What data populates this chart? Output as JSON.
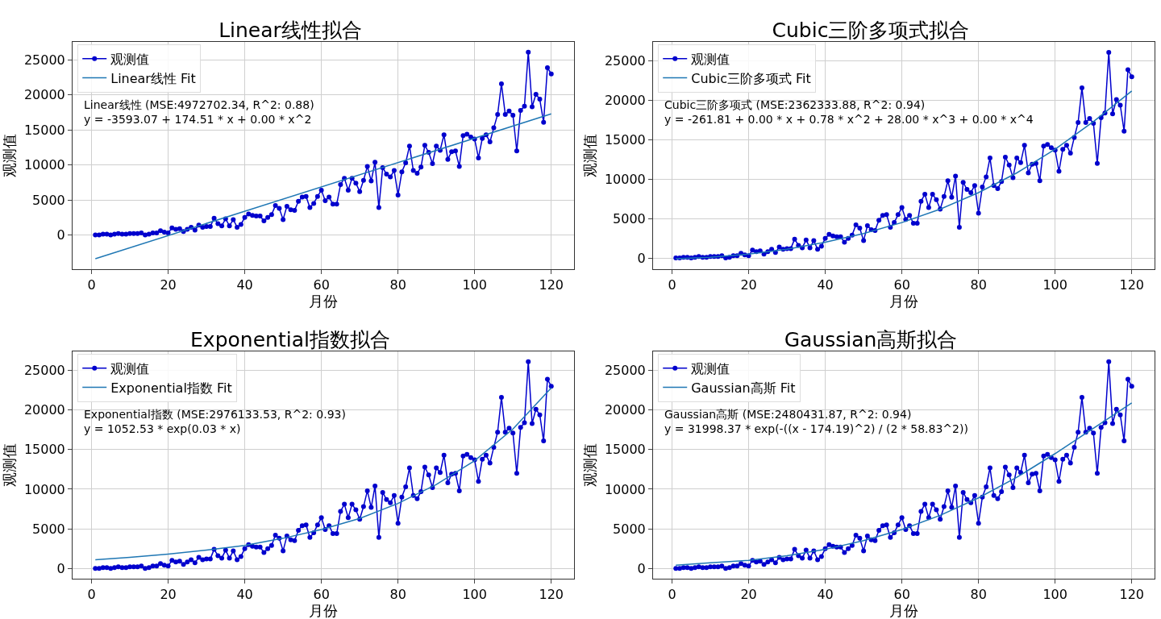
{
  "chart_data": [
    {
      "type": "line",
      "title": "Linear线性拟合",
      "xlabel": "月份",
      "ylabel": "观测值",
      "xlim": [
        -4.95,
        125.95
      ],
      "xticks": [
        0,
        20,
        40,
        60,
        80,
        100,
        120
      ],
      "ylim": [
        -4895,
        27576
      ],
      "yticks": [
        0,
        5000,
        10000,
        15000,
        20000,
        25000
      ],
      "grid": true,
      "legend": "top left",
      "line_style": "solid",
      "annotations": [
        "Linear线性 (MSE:4972702.34, R^2: 0.88)\ny = -3593.07 + 174.51 * x + 0.00 * x^2"
      ],
      "series": [
        {
          "name": "观测值",
          "color": "#0000cd",
          "marker": "circle",
          "x": [
            1,
            2,
            3,
            4,
            5,
            6,
            7,
            8,
            9,
            10,
            11,
            12,
            13,
            14,
            15,
            16,
            17,
            18,
            19,
            20,
            21,
            22,
            23,
            24,
            25,
            26,
            27,
            28,
            29,
            30,
            31,
            32,
            33,
            34,
            35,
            36,
            37,
            38,
            39,
            40,
            41,
            42,
            43,
            44,
            45,
            46,
            47,
            48,
            49,
            50,
            51,
            52,
            53,
            54,
            55,
            56,
            57,
            58,
            59,
            60,
            61,
            62,
            63,
            64,
            65,
            66,
            67,
            68,
            69,
            70,
            71,
            72,
            73,
            74,
            75,
            76,
            77,
            78,
            79,
            80,
            81,
            82,
            83,
            84,
            85,
            86,
            87,
            88,
            89,
            90,
            91,
            92,
            93,
            94,
            95,
            96,
            97,
            98,
            99,
            100,
            101,
            102,
            103,
            104,
            105,
            106,
            107,
            108,
            109,
            110,
            111,
            112,
            113,
            114,
            115,
            116,
            117,
            118,
            119,
            120
          ],
          "values": [
            0,
            0,
            100,
            100,
            0,
            100,
            200,
            100,
            100,
            200,
            200,
            200,
            300,
            0,
            100,
            300,
            300,
            600,
            400,
            300,
            1000,
            800,
            900,
            500,
            800,
            1100,
            700,
            1400,
            1100,
            1200,
            1200,
            2400,
            1600,
            1300,
            2300,
            1300,
            2200,
            1100,
            1500,
            2500,
            3000,
            2800,
            2700,
            2700,
            2000,
            2500,
            2900,
            4200,
            3800,
            2200,
            4100,
            3600,
            3500,
            4800,
            5400,
            5500,
            3900,
            4500,
            5500,
            6400,
            4900,
            5400,
            4400,
            4400,
            7200,
            8100,
            6400,
            8100,
            7400,
            6200,
            7800,
            9800,
            7700,
            10400,
            3900,
            9600,
            8700,
            8300,
            9200,
            5700,
            9000,
            10300,
            12700,
            9200,
            8800,
            9700,
            12800,
            11800,
            10200,
            12700,
            12100,
            14300,
            10800,
            11900,
            12000,
            9800,
            14200,
            14400,
            14000,
            13700,
            11000,
            13800,
            14300,
            13300,
            15300,
            17200,
            21600,
            17200,
            17700,
            17100,
            12000,
            17800,
            18400,
            26100,
            18300,
            20100,
            19400,
            16100,
            23900,
            23000
          ]
        },
        {
          "name": "Linear线性 Fit",
          "color": "#1f77b4",
          "marker": "none",
          "x": [
            1,
            120
          ],
          "values": [
            -3400,
            17300
          ]
        }
      ]
    },
    {
      "type": "line",
      "title": "Cubic三阶多项式拟合",
      "xlabel": "月份",
      "ylabel": "观测值",
      "xlim": [
        -4.95,
        125.95
      ],
      "xticks": [
        0,
        20,
        40,
        60,
        80,
        100,
        120
      ],
      "ylim": [
        -1420,
        27420
      ],
      "yticks": [
        0,
        5000,
        10000,
        15000,
        20000,
        25000
      ],
      "grid": true,
      "legend": "top left",
      "line_style": "solid",
      "annotations": [
        "Cubic三阶多项式 (MSE:2362333.88, R^2: 0.94)\ny = -261.81 + 0.00 * x + 0.78 * x^2 + 28.00 * x^3 + 0.00 * x^4"
      ],
      "series": [
        {
          "name": "观测值",
          "color": "#0000cd",
          "marker": "circle",
          "x": [
            1,
            2,
            3,
            4,
            5,
            6,
            7,
            8,
            9,
            10,
            11,
            12,
            13,
            14,
            15,
            16,
            17,
            18,
            19,
            20,
            21,
            22,
            23,
            24,
            25,
            26,
            27,
            28,
            29,
            30,
            31,
            32,
            33,
            34,
            35,
            36,
            37,
            38,
            39,
            40,
            41,
            42,
            43,
            44,
            45,
            46,
            47,
            48,
            49,
            50,
            51,
            52,
            53,
            54,
            55,
            56,
            57,
            58,
            59,
            60,
            61,
            62,
            63,
            64,
            65,
            66,
            67,
            68,
            69,
            70,
            71,
            72,
            73,
            74,
            75,
            76,
            77,
            78,
            79,
            80,
            81,
            82,
            83,
            84,
            85,
            86,
            87,
            88,
            89,
            90,
            91,
            92,
            93,
            94,
            95,
            96,
            97,
            98,
            99,
            100,
            101,
            102,
            103,
            104,
            105,
            106,
            107,
            108,
            109,
            110,
            111,
            112,
            113,
            114,
            115,
            116,
            117,
            118,
            119,
            120
          ],
          "values": [
            0,
            0,
            100,
            100,
            0,
            100,
            200,
            100,
            100,
            200,
            200,
            200,
            300,
            0,
            100,
            300,
            300,
            600,
            400,
            300,
            1000,
            800,
            900,
            500,
            800,
            1100,
            700,
            1400,
            1100,
            1200,
            1200,
            2400,
            1600,
            1300,
            2300,
            1300,
            2200,
            1100,
            1500,
            2500,
            3000,
            2800,
            2700,
            2700,
            2000,
            2500,
            2900,
            4200,
            3800,
            2200,
            4100,
            3600,
            3500,
            4800,
            5400,
            5500,
            3900,
            4500,
            5500,
            6400,
            4900,
            5400,
            4400,
            4400,
            7200,
            8100,
            6400,
            8100,
            7400,
            6200,
            7800,
            9800,
            7700,
            10400,
            3900,
            9600,
            8700,
            8300,
            9200,
            5700,
            9000,
            10300,
            12700,
            9200,
            8800,
            9700,
            12800,
            11800,
            10200,
            12700,
            12100,
            14300,
            10800,
            11900,
            12000,
            9800,
            14200,
            14400,
            14000,
            13700,
            11000,
            13800,
            14300,
            13300,
            15300,
            17200,
            21600,
            17200,
            17700,
            17100,
            12000,
            17800,
            18400,
            26100,
            18300,
            20100,
            19400,
            16100,
            23900,
            23000
          ]
        },
        {
          "name": "Cubic三阶多项式 Fit",
          "color": "#1f77b4",
          "marker": "none",
          "x": [
            1,
            10,
            20,
            30,
            40,
            50,
            60,
            70,
            80,
            90,
            100,
            110,
            120
          ],
          "values": [
            -100,
            100,
            500,
            1100,
            2000,
            3100,
            4500,
            6200,
            8300,
            10800,
            13800,
            17300,
            21200
          ]
        }
      ]
    },
    {
      "type": "line",
      "title": "Exponential指数拟合",
      "xlabel": "月份",
      "ylabel": "观测值",
      "xlim": [
        -4.95,
        125.95
      ],
      "xticks": [
        0,
        20,
        40,
        60,
        80,
        100,
        120
      ],
      "ylim": [
        -1305,
        27405
      ],
      "yticks": [
        0,
        5000,
        10000,
        15000,
        20000,
        25000
      ],
      "grid": true,
      "legend": "top left",
      "line_style": "solid",
      "annotations": [
        "Exponential指数 (MSE:2976133.53, R^2: 0.93)\ny = 1052.53 * exp(0.03 * x)"
      ],
      "series": [
        {
          "name": "观测值",
          "color": "#0000cd",
          "marker": "circle",
          "x": [
            1,
            2,
            3,
            4,
            5,
            6,
            7,
            8,
            9,
            10,
            11,
            12,
            13,
            14,
            15,
            16,
            17,
            18,
            19,
            20,
            21,
            22,
            23,
            24,
            25,
            26,
            27,
            28,
            29,
            30,
            31,
            32,
            33,
            34,
            35,
            36,
            37,
            38,
            39,
            40,
            41,
            42,
            43,
            44,
            45,
            46,
            47,
            48,
            49,
            50,
            51,
            52,
            53,
            54,
            55,
            56,
            57,
            58,
            59,
            60,
            61,
            62,
            63,
            64,
            65,
            66,
            67,
            68,
            69,
            70,
            71,
            72,
            73,
            74,
            75,
            76,
            77,
            78,
            79,
            80,
            81,
            82,
            83,
            84,
            85,
            86,
            87,
            88,
            89,
            90,
            91,
            92,
            93,
            94,
            95,
            96,
            97,
            98,
            99,
            100,
            101,
            102,
            103,
            104,
            105,
            106,
            107,
            108,
            109,
            110,
            111,
            112,
            113,
            114,
            115,
            116,
            117,
            118,
            119,
            120
          ],
          "values": [
            0,
            0,
            100,
            100,
            0,
            100,
            200,
            100,
            100,
            200,
            200,
            200,
            300,
            0,
            100,
            300,
            300,
            600,
            400,
            300,
            1000,
            800,
            900,
            500,
            800,
            1100,
            700,
            1400,
            1100,
            1200,
            1200,
            2400,
            1600,
            1300,
            2300,
            1300,
            2200,
            1100,
            1500,
            2500,
            3000,
            2800,
            2700,
            2700,
            2000,
            2500,
            2900,
            4200,
            3800,
            2200,
            4100,
            3600,
            3500,
            4800,
            5400,
            5500,
            3900,
            4500,
            5500,
            6400,
            4900,
            5400,
            4400,
            4400,
            7200,
            8100,
            6400,
            8100,
            7400,
            6200,
            7800,
            9800,
            7700,
            10400,
            3900,
            9600,
            8700,
            8300,
            9200,
            5700,
            9000,
            10300,
            12700,
            9200,
            8800,
            9700,
            12800,
            11800,
            10200,
            12700,
            12100,
            14300,
            10800,
            11900,
            12000,
            9800,
            14200,
            14400,
            14000,
            13700,
            11000,
            13800,
            14300,
            13300,
            15300,
            17200,
            21600,
            17200,
            17700,
            17100,
            12000,
            17800,
            18400,
            26100,
            18300,
            20100,
            19400,
            16100,
            23900,
            23000
          ]
        },
        {
          "name": "Exponential指数 Fit",
          "color": "#1f77b4",
          "marker": "none",
          "x": [
            1,
            10,
            20,
            30,
            40,
            50,
            60,
            70,
            80,
            90,
            100,
            110,
            120
          ],
          "values": [
            1100,
            1400,
            1800,
            2300,
            2900,
            3800,
            4900,
            6300,
            8200,
            10600,
            13600,
            17600,
            22800
          ]
        }
      ]
    },
    {
      "type": "line",
      "title": "Gaussian高斯拟合",
      "xlabel": "月份",
      "ylabel": "观测值",
      "xlim": [
        -4.95,
        125.95
      ],
      "xticks": [
        0,
        20,
        40,
        60,
        80,
        100,
        120
      ],
      "ylim": [
        -1305,
        27405
      ],
      "yticks": [
        0,
        5000,
        10000,
        15000,
        20000,
        25000
      ],
      "grid": true,
      "legend": "top left",
      "line_style": "solid",
      "annotations": [
        "Gaussian高斯 (MSE:2480431.87, R^2: 0.94)\ny = 31998.37 * exp(-((x - 174.19)^2) / (2 * 58.83^2))"
      ],
      "series": [
        {
          "name": "观测值",
          "color": "#0000cd",
          "marker": "circle",
          "x": [
            1,
            2,
            3,
            4,
            5,
            6,
            7,
            8,
            9,
            10,
            11,
            12,
            13,
            14,
            15,
            16,
            17,
            18,
            19,
            20,
            21,
            22,
            23,
            24,
            25,
            26,
            27,
            28,
            29,
            30,
            31,
            32,
            33,
            34,
            35,
            36,
            37,
            38,
            39,
            40,
            41,
            42,
            43,
            44,
            45,
            46,
            47,
            48,
            49,
            50,
            51,
            52,
            53,
            54,
            55,
            56,
            57,
            58,
            59,
            60,
            61,
            62,
            63,
            64,
            65,
            66,
            67,
            68,
            69,
            70,
            71,
            72,
            73,
            74,
            75,
            76,
            77,
            78,
            79,
            80,
            81,
            82,
            83,
            84,
            85,
            86,
            87,
            88,
            89,
            90,
            91,
            92,
            93,
            94,
            95,
            96,
            97,
            98,
            99,
            100,
            101,
            102,
            103,
            104,
            105,
            106,
            107,
            108,
            109,
            110,
            111,
            112,
            113,
            114,
            115,
            116,
            117,
            118,
            119,
            120
          ],
          "values": [
            0,
            0,
            100,
            100,
            0,
            100,
            200,
            100,
            100,
            200,
            200,
            200,
            300,
            0,
            100,
            300,
            300,
            600,
            400,
            300,
            1000,
            800,
            900,
            500,
            800,
            1100,
            700,
            1400,
            1100,
            1200,
            1200,
            2400,
            1600,
            1300,
            2300,
            1300,
            2200,
            1100,
            1500,
            2500,
            3000,
            2800,
            2700,
            2700,
            2000,
            2500,
            2900,
            4200,
            3800,
            2200,
            4100,
            3600,
            3500,
            4800,
            5400,
            5500,
            3900,
            4500,
            5500,
            6400,
            4900,
            5400,
            4400,
            4400,
            7200,
            8100,
            6400,
            8100,
            7400,
            6200,
            7800,
            9800,
            7700,
            10400,
            3900,
            9600,
            8700,
            8300,
            9200,
            5700,
            9000,
            10300,
            12700,
            9200,
            8800,
            9700,
            12800,
            11800,
            10200,
            12700,
            12100,
            14300,
            10800,
            11900,
            12000,
            9800,
            14200,
            14400,
            14000,
            13700,
            11000,
            13800,
            14300,
            13300,
            15300,
            17200,
            21600,
            17200,
            17700,
            17100,
            12000,
            17800,
            18400,
            26100,
            18300,
            20100,
            19400,
            16100,
            23900,
            23000
          ]
        },
        {
          "name": "Gaussian高斯 Fit",
          "color": "#1f77b4",
          "marker": "none",
          "x": [
            1,
            10,
            20,
            30,
            40,
            50,
            60,
            70,
            80,
            90,
            100,
            110,
            120
          ],
          "values": [
            400,
            700,
            1000,
            1600,
            2400,
            3500,
            4900,
            6700,
            8900,
            11500,
            14500,
            17700,
            20900
          ]
        }
      ]
    }
  ]
}
